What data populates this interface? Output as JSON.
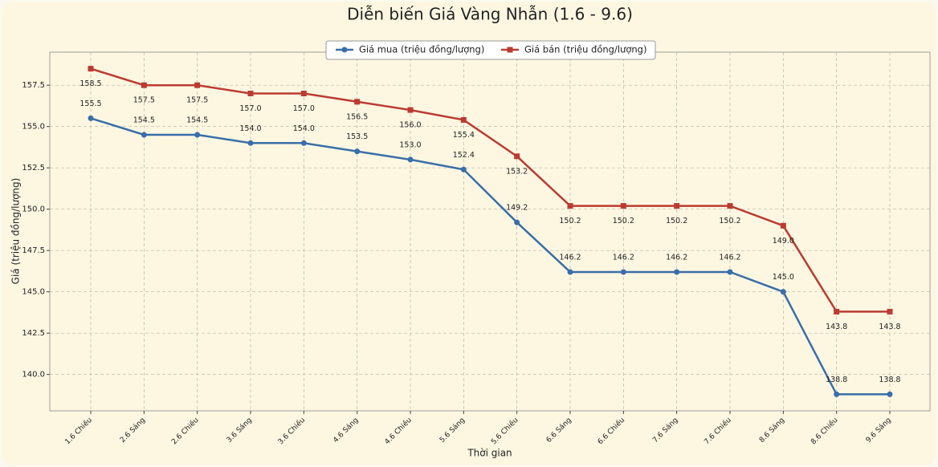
{
  "chart_data": {
    "type": "line",
    "title": "Diễn biến Giá Vàng Nhẫn (1.6 - 9.6)",
    "x_label": "Thời gian",
    "y_label": "Giá (triệu đồng/lượng)",
    "categories": [
      "1.6 Chiều",
      "2.6 Sáng",
      "2.6 Chiều",
      "3.6 Sáng",
      "3.6 Chiều",
      "4.6 Sáng",
      "4.6 Chiều",
      "5.6 Sáng",
      "5.6 Chiều",
      "6.6 Sáng",
      "6.6 Chiều",
      "7.6 Sáng",
      "7.6 Chiều",
      "8.6 Sáng",
      "8.6 Chiều",
      "9.6 Sáng"
    ],
    "series": [
      {
        "name": "Giá mua (triệu đồng/lượng)",
        "color": "#3a6ea8",
        "marker": "circle",
        "values": [
          155.5,
          154.5,
          154.5,
          154.0,
          154.0,
          153.5,
          153.0,
          152.4,
          149.2,
          146.2,
          146.2,
          146.2,
          146.2,
          145.0,
          138.8,
          138.8
        ],
        "value_labels": [
          "155.5",
          "154.5",
          "154.5",
          "154.0",
          "154.0",
          "153.5",
          "153.0",
          "152.4",
          "149.2",
          "146.2",
          "146.2",
          "146.2",
          "146.2",
          "145.0",
          "138.8",
          "138.8"
        ]
      },
      {
        "name": "Giá bán (triệu đồng/lượng)",
        "color": "#bb3b31",
        "marker": "square",
        "values": [
          158.5,
          157.5,
          157.5,
          157.0,
          157.0,
          156.5,
          156.0,
          155.4,
          153.2,
          150.2,
          150.2,
          150.2,
          150.2,
          149.0,
          143.8,
          143.8
        ],
        "value_labels": [
          "158.5",
          "157.5",
          "157.5",
          "157.0",
          "157.0",
          "156.5",
          "156.0",
          "155.4",
          "153.2",
          "150.2",
          "150.2",
          "150.2",
          "150.2",
          "149.0",
          "143.8",
          "143.8"
        ]
      }
    ],
    "ylim": [
      137.8,
      159.5
    ],
    "yticks": [
      {
        "value": 140,
        "label": "140.0"
      },
      {
        "value": 142.5,
        "label": "142.5"
      },
      {
        "value": 145,
        "label": "145.0"
      },
      {
        "value": 147.5,
        "label": "147.5"
      },
      {
        "value": 150,
        "label": "150.0"
      },
      {
        "value": 152.5,
        "label": "152.5"
      },
      {
        "value": 155,
        "label": "155.0"
      },
      {
        "value": 157.5,
        "label": "157.5"
      }
    ],
    "grid": true,
    "legend": "top"
  }
}
